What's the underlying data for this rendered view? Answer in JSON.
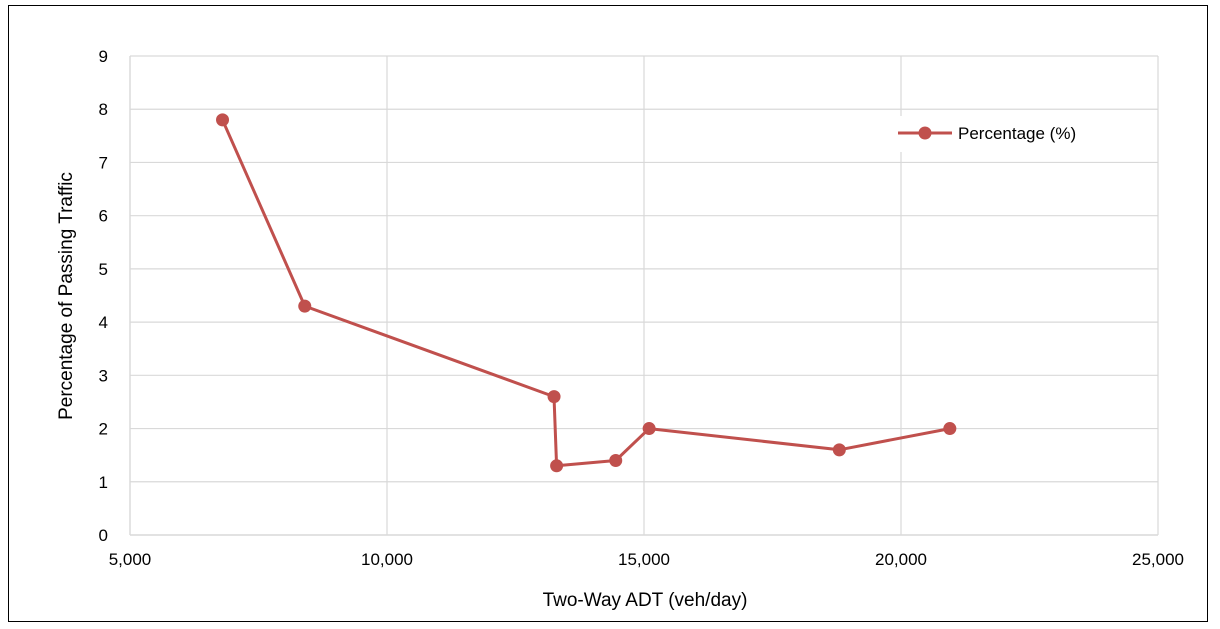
{
  "chart_data": {
    "type": "line",
    "title": "",
    "xlabel": "Two-Way ADT (veh/day)",
    "ylabel": "Percentage of Passing Traffic",
    "xlim": [
      5000,
      25000
    ],
    "ylim": [
      0,
      9
    ],
    "x_ticks": [
      5000,
      10000,
      15000,
      20000,
      25000
    ],
    "x_tick_labels": [
      "5,000",
      "10,000",
      "15,000",
      "20,000",
      "25,000"
    ],
    "y_ticks": [
      0,
      1,
      2,
      3,
      4,
      5,
      6,
      7,
      8,
      9
    ],
    "y_tick_labels": [
      "0",
      "1",
      "2",
      "3",
      "4",
      "5",
      "6",
      "7",
      "8",
      "9"
    ],
    "grid": true,
    "legend_position": "top-right",
    "series": [
      {
        "name": "Percentage (%)",
        "color": "#c0504d",
        "x": [
          6800,
          8400,
          13250,
          13300,
          14450,
          15100,
          18800,
          20950
        ],
        "y": [
          7.8,
          4.3,
          2.6,
          1.3,
          1.4,
          2.0,
          1.6,
          2.0
        ]
      }
    ]
  },
  "colors": {
    "grid": "#d9d9d9",
    "frame": "#000000",
    "series": "#c0504d"
  }
}
